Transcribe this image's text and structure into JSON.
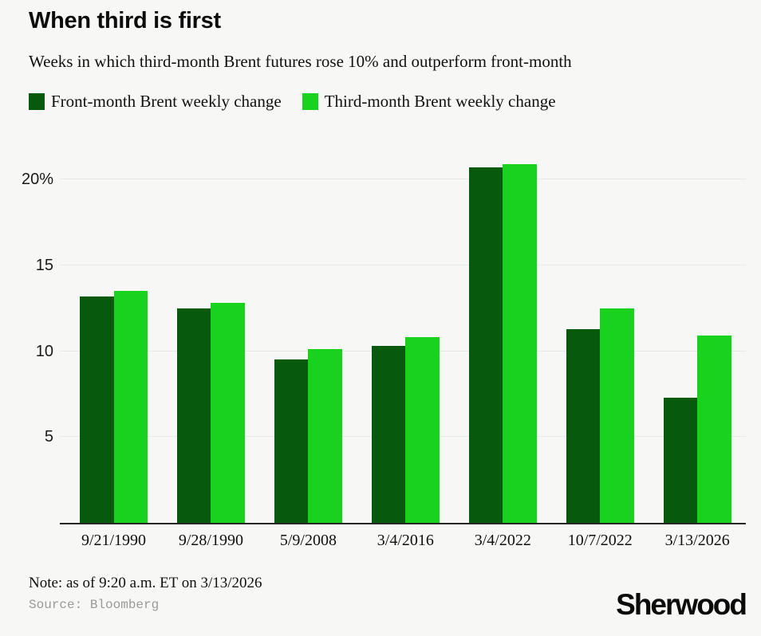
{
  "page": {
    "background": "#f7f7f5"
  },
  "header": {
    "title": "When third is first",
    "subtitle": "Weeks in which third-month Brent futures rose 10% and outperform front-month"
  },
  "legend": [
    {
      "label": "Front-month Brent weekly change",
      "color": "#07590d"
    },
    {
      "label": "Third-month Brent weekly change",
      "color": "#18d21e"
    }
  ],
  "chart_data": {
    "type": "bar",
    "title": "When third is first",
    "categories": [
      "9/21/1990",
      "9/28/1990",
      "5/9/2008",
      "3/4/2016",
      "3/4/2022",
      "10/7/2022",
      "3/13/2026"
    ],
    "series": [
      {
        "name": "Front-month Brent weekly change",
        "color": "#07590d",
        "values": [
          13.2,
          12.5,
          9.5,
          10.3,
          20.7,
          11.3,
          7.3
        ]
      },
      {
        "name": "Third-month Brent weekly change",
        "color": "#18d21e",
        "values": [
          13.5,
          12.8,
          10.1,
          10.8,
          20.9,
          12.5,
          10.9
        ]
      }
    ],
    "xlabel": "",
    "ylabel": "",
    "unit": "%",
    "y_ticks": [
      {
        "value": 5,
        "label": "5"
      },
      {
        "value": 10,
        "label": "10"
      },
      {
        "value": 15,
        "label": "15"
      },
      {
        "value": 20,
        "label": "20%"
      }
    ],
    "ylim": [
      0,
      21.87
    ],
    "grid": true,
    "legend_position": "top"
  },
  "footer": {
    "note": "Note: as of 9:20 a.m. ET on 3/13/2026",
    "source": "Source: Bloomberg",
    "logo": "Sherwood"
  },
  "colors": {
    "background": "#f7f7f5",
    "gridline": "#e8e8e5",
    "axis": "#262626",
    "front_month": "#07590d",
    "third_month": "#18d21e"
  }
}
